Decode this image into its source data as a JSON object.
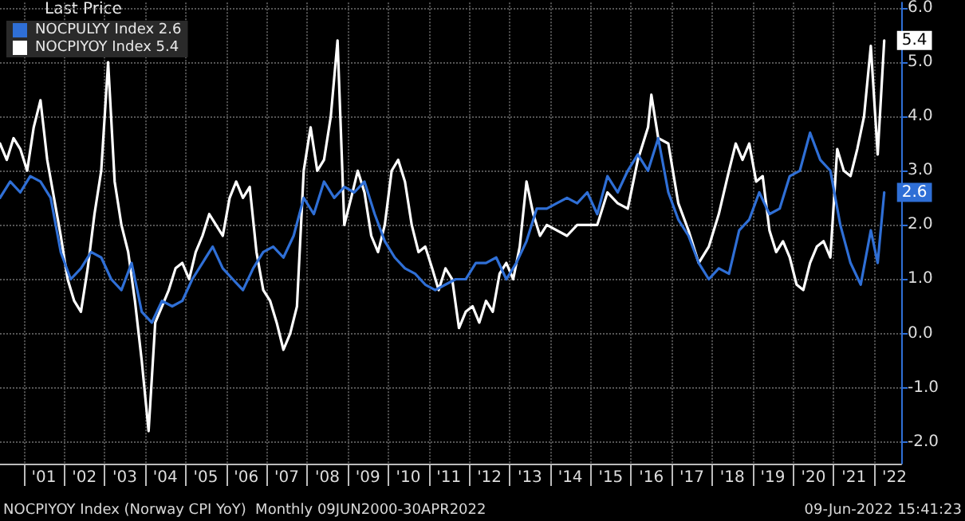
{
  "chart_data": {
    "type": "line",
    "legend_title": "Last Price",
    "legend": "top left",
    "grid": true,
    "marker": "none",
    "line_style": "solid",
    "annotations": [
      "NOCPIYOY Index (Norway CPI YoY)  Monthly 09JUN2000-30APR2022",
      "09-Jun-2022 15:41:23"
    ],
    "xlim": [
      "2000-06",
      "2022-09"
    ],
    "xticks": [
      {
        "value": "2001",
        "label": null
      },
      {
        "value": "2001-07",
        "label": "'01"
      },
      {
        "value": "2002",
        "label": null
      },
      {
        "value": "2002-07",
        "label": "'02"
      },
      {
        "value": "2003",
        "label": null
      },
      {
        "value": "2003-07",
        "label": "'03"
      },
      {
        "value": "2004",
        "label": null
      },
      {
        "value": "2004-07",
        "label": "'04"
      },
      {
        "value": "2005",
        "label": null
      },
      {
        "value": "2005-07",
        "label": "'05"
      },
      {
        "value": "2006",
        "label": null
      },
      {
        "value": "2006-07",
        "label": "'06"
      },
      {
        "value": "2007",
        "label": null
      },
      {
        "value": "2007-07",
        "label": "'07"
      },
      {
        "value": "2008",
        "label": null
      },
      {
        "value": "2008-07",
        "label": "'08"
      },
      {
        "value": "2009",
        "label": null
      },
      {
        "value": "2009-07",
        "label": "'09"
      },
      {
        "value": "2010",
        "label": null
      },
      {
        "value": "2010-07",
        "label": "'10"
      },
      {
        "value": "2011",
        "label": null
      },
      {
        "value": "2011-07",
        "label": "'11"
      },
      {
        "value": "2012",
        "label": null
      },
      {
        "value": "2012-07",
        "label": "'12"
      },
      {
        "value": "2013",
        "label": null
      },
      {
        "value": "2013-07",
        "label": "'13"
      },
      {
        "value": "2014",
        "label": null
      },
      {
        "value": "2014-07",
        "label": "'14"
      },
      {
        "value": "2015",
        "label": null
      },
      {
        "value": "2015-07",
        "label": "'15"
      },
      {
        "value": "2016",
        "label": null
      },
      {
        "value": "2016-07",
        "label": "'16"
      },
      {
        "value": "2017",
        "label": null
      },
      {
        "value": "2017-07",
        "label": "'17"
      },
      {
        "value": "2018",
        "label": null
      },
      {
        "value": "2018-07",
        "label": "'18"
      },
      {
        "value": "2019",
        "label": null
      },
      {
        "value": "2019-07",
        "label": "'19"
      },
      {
        "value": "2020",
        "label": null
      },
      {
        "value": "2020-07",
        "label": "'20"
      },
      {
        "value": "2021",
        "label": null
      },
      {
        "value": "2021-07",
        "label": "'21"
      },
      {
        "value": "2022",
        "label": null
      },
      {
        "value": "2022-07",
        "label": "'22"
      }
    ],
    "ylim": [
      -2.4,
      6.1
    ],
    "yticks": [
      {
        "value": -2,
        "label": "-2.0"
      },
      {
        "value": -1,
        "label": "-1.0"
      },
      {
        "value": 0,
        "label": "0.0"
      },
      {
        "value": 1,
        "label": "1.0"
      },
      {
        "value": 2,
        "label": "2.0"
      },
      {
        "value": 3,
        "label": "3.0"
      },
      {
        "value": 4,
        "label": "4.0"
      },
      {
        "value": 5,
        "label": "5.0"
      },
      {
        "value": 6,
        "label": "6.0"
      }
    ],
    "series": [
      {
        "name": "NOCPULYY Index 2.6",
        "color": "#2f6fd6",
        "x": [
          "2000-06",
          "2000-09",
          "2000-12",
          "2001-03",
          "2001-06",
          "2001-09",
          "2001-12",
          "2002-03",
          "2002-06",
          "2002-09",
          "2002-12",
          "2003-03",
          "2003-06",
          "2003-09",
          "2003-12",
          "2004-03",
          "2004-06",
          "2004-09",
          "2004-12",
          "2005-03",
          "2005-06",
          "2005-09",
          "2005-12",
          "2006-03",
          "2006-06",
          "2006-09",
          "2006-12",
          "2007-03",
          "2007-06",
          "2007-09",
          "2007-12",
          "2008-03",
          "2008-06",
          "2008-09",
          "2008-12",
          "2009-03",
          "2009-06",
          "2009-09",
          "2009-12",
          "2010-03",
          "2010-06",
          "2010-09",
          "2010-12",
          "2011-03",
          "2011-06",
          "2011-09",
          "2011-12",
          "2012-03",
          "2012-06",
          "2012-09",
          "2012-12",
          "2013-03",
          "2013-06",
          "2013-09",
          "2013-12",
          "2014-03",
          "2014-06",
          "2014-09",
          "2014-12",
          "2015-03",
          "2015-06",
          "2015-09",
          "2015-12",
          "2016-03",
          "2016-06",
          "2016-09",
          "2016-12",
          "2017-03",
          "2017-06",
          "2017-09",
          "2017-12",
          "2018-03",
          "2018-06",
          "2018-09",
          "2018-12",
          "2019-03",
          "2019-06",
          "2019-09",
          "2019-12",
          "2020-03",
          "2020-06",
          "2020-09",
          "2020-12",
          "2021-03",
          "2021-06",
          "2021-09",
          "2021-12",
          "2022-02",
          "2022-04"
        ],
        "values": [
          2.5,
          2.8,
          2.6,
          2.9,
          2.8,
          2.5,
          1.5,
          1.0,
          1.2,
          1.5,
          1.4,
          1.0,
          0.8,
          1.3,
          0.4,
          0.2,
          0.6,
          0.5,
          0.6,
          1.0,
          1.3,
          1.6,
          1.2,
          1.0,
          0.8,
          1.2,
          1.5,
          1.6,
          1.4,
          1.8,
          2.5,
          2.2,
          2.8,
          2.5,
          2.7,
          2.6,
          2.8,
          2.2,
          1.7,
          1.4,
          1.2,
          1.1,
          0.9,
          0.8,
          0.9,
          1.0,
          1.0,
          1.3,
          1.3,
          1.4,
          1.0,
          1.3,
          1.7,
          2.3,
          2.3,
          2.4,
          2.5,
          2.4,
          2.6,
          2.2,
          2.9,
          2.6,
          3.0,
          3.3,
          3.0,
          3.6,
          2.6,
          2.1,
          1.8,
          1.3,
          1.0,
          1.2,
          1.1,
          1.9,
          2.1,
          2.6,
          2.2,
          2.3,
          2.9,
          3.0,
          3.7,
          3.2,
          3.0,
          2.0,
          1.3,
          0.9,
          1.9,
          1.3,
          2.6
        ],
        "value_labels": [
          null,
          null,
          null,
          null,
          null,
          null,
          null,
          null,
          null,
          null,
          null,
          null,
          null,
          null,
          null,
          null,
          null,
          null,
          null,
          null,
          null,
          null,
          null,
          null,
          null,
          null,
          null,
          null,
          null,
          null,
          null,
          null,
          null,
          null,
          null,
          null,
          null,
          null,
          null,
          null,
          null,
          null,
          null,
          null,
          null,
          null,
          null,
          null,
          null,
          null,
          null,
          null,
          null,
          null,
          null,
          null,
          null,
          null,
          null,
          null,
          null,
          null,
          null,
          null,
          null,
          null,
          null,
          null,
          null,
          null,
          null,
          null,
          null,
          null,
          null,
          null,
          null,
          null,
          null,
          null,
          null,
          null,
          null,
          null,
          null,
          null,
          null,
          null,
          "2.6"
        ]
      },
      {
        "name": "NOCPIYOY Index 5.4",
        "color": "#ffffff",
        "x": [
          "2000-06",
          "2000-08",
          "2000-10",
          "2000-12",
          "2001-02",
          "2001-04",
          "2001-06",
          "2001-08",
          "2001-10",
          "2001-12",
          "2002-02",
          "2002-04",
          "2002-06",
          "2002-08",
          "2002-10",
          "2002-12",
          "2003-02",
          "2003-04",
          "2003-06",
          "2003-08",
          "2003-10",
          "2003-12",
          "2004-02",
          "2004-04",
          "2004-06",
          "2004-08",
          "2004-10",
          "2004-12",
          "2005-02",
          "2005-04",
          "2005-06",
          "2005-08",
          "2005-10",
          "2005-12",
          "2006-02",
          "2006-04",
          "2006-06",
          "2006-08",
          "2006-10",
          "2006-12",
          "2007-02",
          "2007-04",
          "2007-06",
          "2007-08",
          "2007-10",
          "2007-12",
          "2008-02",
          "2008-04",
          "2008-06",
          "2008-08",
          "2008-10",
          "2008-12",
          "2009-02",
          "2009-04",
          "2009-06",
          "2009-08",
          "2009-10",
          "2009-12",
          "2010-02",
          "2010-04",
          "2010-06",
          "2010-08",
          "2010-10",
          "2010-12",
          "2011-02",
          "2011-04",
          "2011-06",
          "2011-08",
          "2011-10",
          "2011-12",
          "2012-02",
          "2012-04",
          "2012-06",
          "2012-08",
          "2012-10",
          "2012-12",
          "2013-02",
          "2013-04",
          "2013-06",
          "2013-08",
          "2013-10",
          "2013-12",
          "2014-03",
          "2014-06",
          "2014-09",
          "2014-12",
          "2015-03",
          "2015-06",
          "2015-09",
          "2015-12",
          "2016-03",
          "2016-06",
          "2016-07",
          "2016-09",
          "2016-12",
          "2017-03",
          "2017-06",
          "2017-09",
          "2017-12",
          "2018-03",
          "2018-06",
          "2018-08",
          "2018-10",
          "2018-12",
          "2019-02",
          "2019-04",
          "2019-06",
          "2019-08",
          "2019-10",
          "2019-12",
          "2020-02",
          "2020-04",
          "2020-06",
          "2020-08",
          "2020-10",
          "2020-12",
          "2021-02",
          "2021-04",
          "2021-06",
          "2021-08",
          "2021-10",
          "2021-12",
          "2022-02",
          "2022-04"
        ],
        "values": [
          3.5,
          3.2,
          3.6,
          3.4,
          3.0,
          3.8,
          4.3,
          3.2,
          2.5,
          1.8,
          1.0,
          0.6,
          0.4,
          1.2,
          2.2,
          3.0,
          5.0,
          2.8,
          2.0,
          1.5,
          0.6,
          -0.5,
          -1.8,
          0.2,
          0.5,
          0.8,
          1.2,
          1.3,
          1.0,
          1.5,
          1.8,
          2.2,
          2.0,
          1.8,
          2.5,
          2.8,
          2.5,
          2.7,
          1.5,
          0.8,
          0.6,
          0.2,
          -0.3,
          0.0,
          0.5,
          3.0,
          3.8,
          3.0,
          3.2,
          4.0,
          5.4,
          2.0,
          2.5,
          3.0,
          2.6,
          1.8,
          1.5,
          2.0,
          3.0,
          3.2,
          2.8,
          2.0,
          1.5,
          1.6,
          1.2,
          0.8,
          1.2,
          1.0,
          0.1,
          0.4,
          0.5,
          0.2,
          0.6,
          0.4,
          1.1,
          1.3,
          1.0,
          1.6,
          2.8,
          2.2,
          1.8,
          2.0,
          1.9,
          1.8,
          2.0,
          2.0,
          2.0,
          2.6,
          2.4,
          2.3,
          3.2,
          3.8,
          4.4,
          3.6,
          3.5,
          2.4,
          1.9,
          1.3,
          1.6,
          2.2,
          3.0,
          3.5,
          3.2,
          3.5,
          2.8,
          2.9,
          1.9,
          1.5,
          1.7,
          1.4,
          0.9,
          0.8,
          1.3,
          1.6,
          1.7,
          1.4,
          3.4,
          3.0,
          2.9,
          3.4,
          4.0,
          5.3,
          3.3,
          5.4
        ],
        "value_labels": [
          null,
          null,
          null,
          null,
          null,
          null,
          null,
          null,
          null,
          null,
          null,
          null,
          null,
          null,
          null,
          null,
          null,
          null,
          null,
          null,
          null,
          null,
          null,
          null,
          null,
          null,
          null,
          null,
          null,
          null,
          null,
          null,
          null,
          null,
          null,
          null,
          null,
          null,
          null,
          null,
          null,
          null,
          null,
          null,
          null,
          null,
          null,
          null,
          null,
          null,
          null,
          null,
          null,
          null,
          null,
          null,
          null,
          null,
          null,
          null,
          null,
          null,
          null,
          null,
          null,
          null,
          null,
          null,
          null,
          null,
          null,
          null,
          null,
          null,
          null,
          null,
          null,
          null,
          null,
          null,
          null,
          null,
          null,
          null,
          null,
          null,
          null,
          null,
          null,
          null,
          null,
          null,
          null,
          null,
          null,
          null,
          null,
          null,
          null,
          null,
          null,
          null,
          null,
          null,
          null,
          null,
          null,
          null,
          null,
          null,
          null,
          null,
          null,
          null,
          null,
          null,
          null,
          null,
          null,
          null,
          null,
          null,
          null,
          "5.4"
        ]
      }
    ]
  }
}
